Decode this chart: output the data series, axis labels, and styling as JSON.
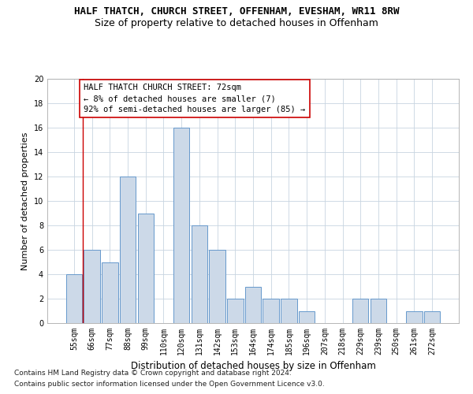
{
  "title": "HALF THATCH, CHURCH STREET, OFFENHAM, EVESHAM, WR11 8RW",
  "subtitle": "Size of property relative to detached houses in Offenham",
  "xlabel": "Distribution of detached houses by size in Offenham",
  "ylabel": "Number of detached properties",
  "categories": [
    "55sqm",
    "66sqm",
    "77sqm",
    "88sqm",
    "99sqm",
    "110sqm",
    "120sqm",
    "131sqm",
    "142sqm",
    "153sqm",
    "164sqm",
    "174sqm",
    "185sqm",
    "196sqm",
    "207sqm",
    "218sqm",
    "229sqm",
    "239sqm",
    "250sqm",
    "261sqm",
    "272sqm"
  ],
  "values": [
    4,
    6,
    5,
    12,
    9,
    0,
    16,
    8,
    6,
    2,
    3,
    2,
    2,
    1,
    0,
    0,
    2,
    2,
    0,
    1,
    1
  ],
  "bar_color": "#ccd9e8",
  "bar_edge_color": "#6699cc",
  "ylim": [
    0,
    20
  ],
  "yticks": [
    0,
    2,
    4,
    6,
    8,
    10,
    12,
    14,
    16,
    18,
    20
  ],
  "annotation_box_text": "HALF THATCH CHURCH STREET: 72sqm\n← 8% of detached houses are smaller (7)\n92% of semi-detached houses are larger (85) →",
  "vline_color": "#cc0000",
  "footnote1": "Contains HM Land Registry data © Crown copyright and database right 2024.",
  "footnote2": "Contains public sector information licensed under the Open Government Licence v3.0.",
  "background_color": "#ffffff",
  "grid_color": "#c8d4e0",
  "title_fontsize": 9,
  "subtitle_fontsize": 9,
  "xlabel_fontsize": 8.5,
  "ylabel_fontsize": 8,
  "annotation_fontsize": 7.5,
  "footnote_fontsize": 6.5,
  "tick_fontsize": 7
}
